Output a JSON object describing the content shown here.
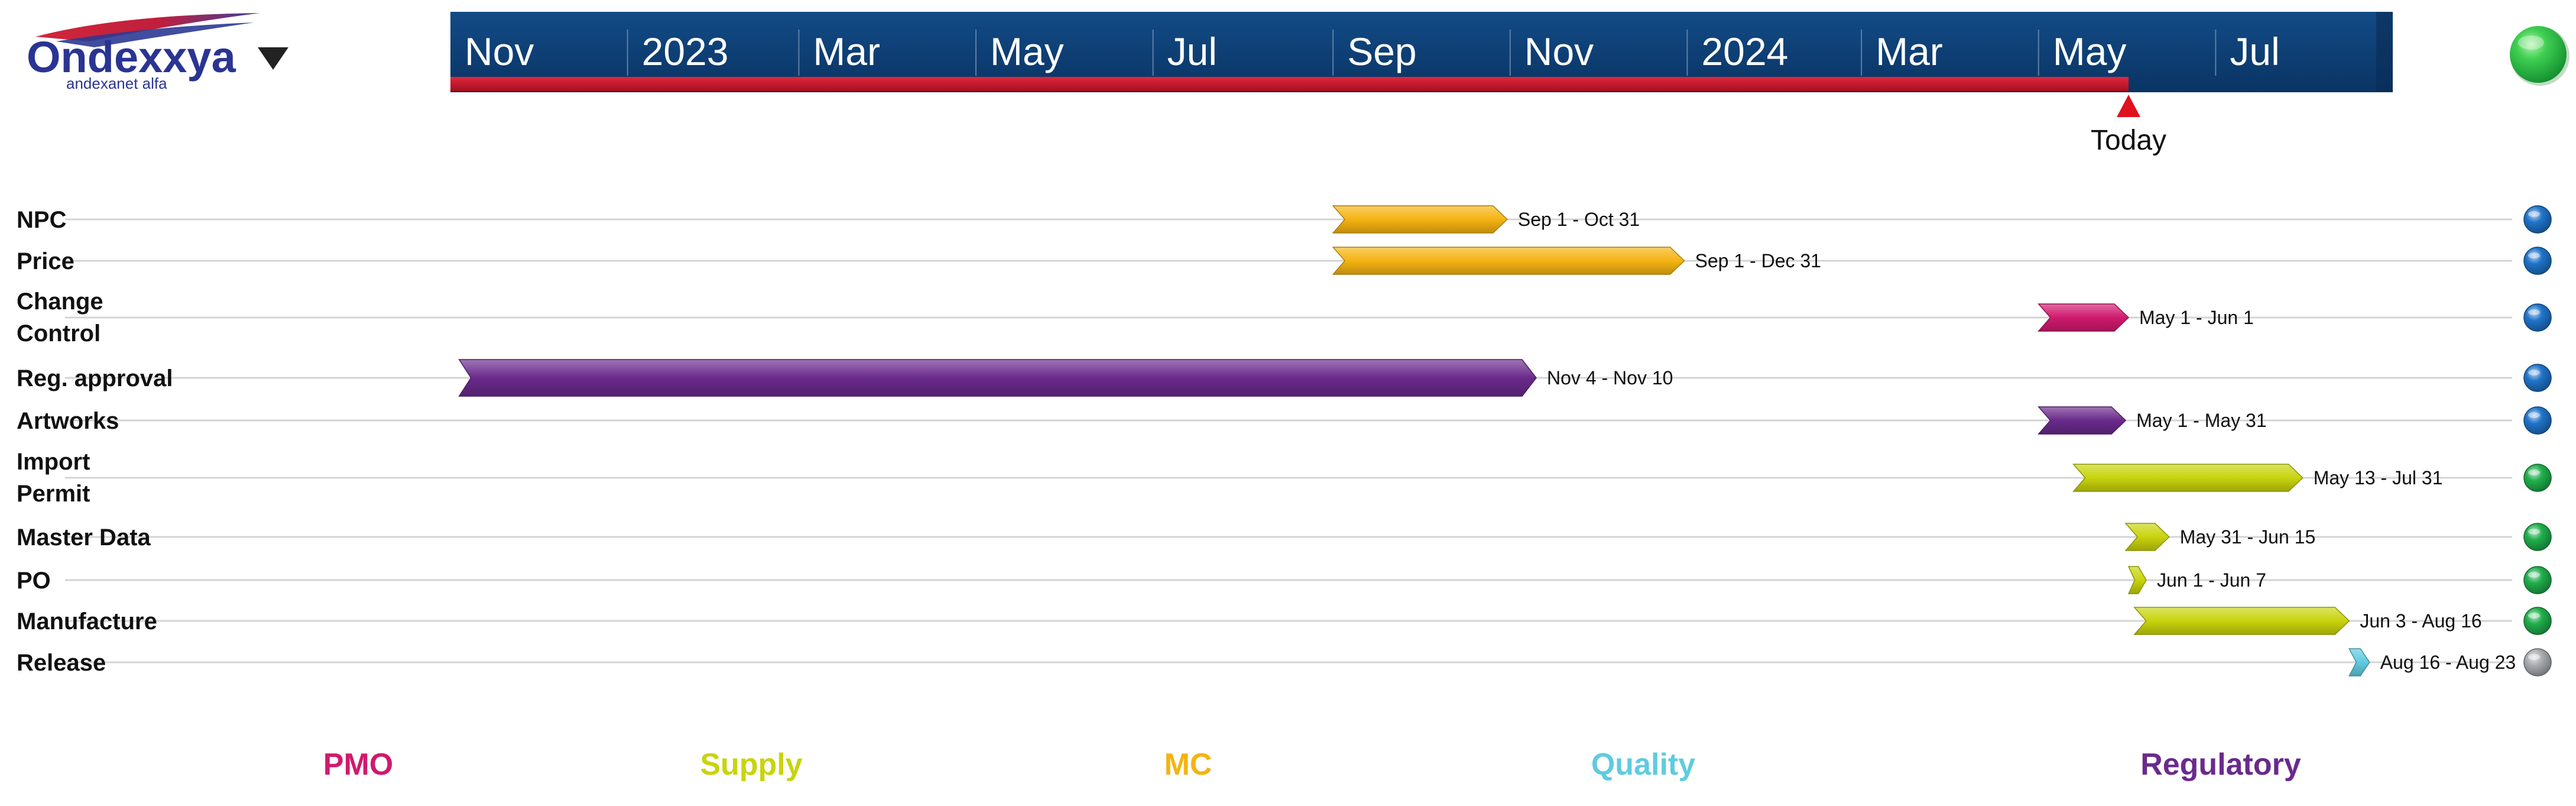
{
  "logo": {
    "name": "Ondexxya",
    "tagline": "andexanet alfa",
    "menu_icon": "caret-down-icon"
  },
  "status_indicator": {
    "color": "#22b24c",
    "icon": "green-status-orb-icon"
  },
  "chart_data": {
    "type": "gantt",
    "timeline": {
      "start": "2022-11-01",
      "end": "2024-08-31",
      "labels": [
        {
          "date": "2022-11-01",
          "text": "Nov"
        },
        {
          "date": "2023-01-01",
          "text": "2023"
        },
        {
          "date": "2023-03-01",
          "text": "Mar"
        },
        {
          "date": "2023-05-01",
          "text": "May"
        },
        {
          "date": "2023-07-01",
          "text": "Jul"
        },
        {
          "date": "2023-09-01",
          "text": "Sep"
        },
        {
          "date": "2023-11-01",
          "text": "Nov"
        },
        {
          "date": "2024-01-01",
          "text": "2024"
        },
        {
          "date": "2024-03-01",
          "text": "Mar"
        },
        {
          "date": "2024-05-01",
          "text": "May"
        },
        {
          "date": "2024-07-01",
          "text": "Jul"
        }
      ],
      "today": "2024-06-01",
      "today_label": "Today",
      "header_color": "#0e3e73",
      "progress_color": "#c0172b"
    },
    "tasks": [
      {
        "name": "NPC",
        "start": "2023-09-01",
        "end": "2023-10-31",
        "label": "Sep 1 - Oct 31",
        "category": "MC",
        "status": "blue"
      },
      {
        "name": "Price",
        "start": "2023-09-01",
        "end": "2023-12-31",
        "label": "Sep 1 - Dec 31",
        "category": "MC",
        "status": "blue"
      },
      {
        "name": "Change Control",
        "start": "2024-05-01",
        "end": "2024-06-01",
        "label": "May 1 - Jun 1",
        "category": "PMO",
        "status": "blue"
      },
      {
        "name": "Reg. approval",
        "start": "2022-11-04",
        "end": "2023-11-10",
        "label": "Nov 4 - Nov 10",
        "category": "Regulatory",
        "status": "blue"
      },
      {
        "name": "Artworks",
        "start": "2024-05-01",
        "end": "2024-05-31",
        "label": "May 1 - May 31",
        "category": "Regulatory",
        "status": "blue"
      },
      {
        "name": "Import Permit",
        "start": "2024-05-13",
        "end": "2024-07-31",
        "label": "May 13 - Jul 31",
        "category": "Supply",
        "status": "green"
      },
      {
        "name": "Master Data",
        "start": "2024-05-31",
        "end": "2024-06-15",
        "label": "May 31 - Jun 15",
        "category": "Supply",
        "status": "green"
      },
      {
        "name": "PO",
        "start": "2024-06-01",
        "end": "2024-06-07",
        "label": "Jun 1 - Jun 7",
        "category": "Supply",
        "status": "green"
      },
      {
        "name": "Manufacture",
        "start": "2024-06-03",
        "end": "2024-08-16",
        "label": "Jun 3 - Aug 16",
        "category": "Supply",
        "status": "green"
      },
      {
        "name": "Release",
        "start": "2024-08-16",
        "end": "2024-08-23",
        "label": "Aug 16 - Aug 23",
        "category": "Quality",
        "status": "grey"
      }
    ],
    "categories": [
      {
        "name": "PMO",
        "color": "#d0196e"
      },
      {
        "name": "Supply",
        "color": "#c8d40c"
      },
      {
        "name": "MC",
        "color": "#f5b312"
      },
      {
        "name": "Quality",
        "color": "#5fcbe0"
      },
      {
        "name": "Regulatory",
        "color": "#6a2a8c"
      }
    ],
    "status_colors": {
      "blue": "#1f73c9",
      "green": "#1fae4b",
      "grey": "#a8acb0"
    }
  }
}
